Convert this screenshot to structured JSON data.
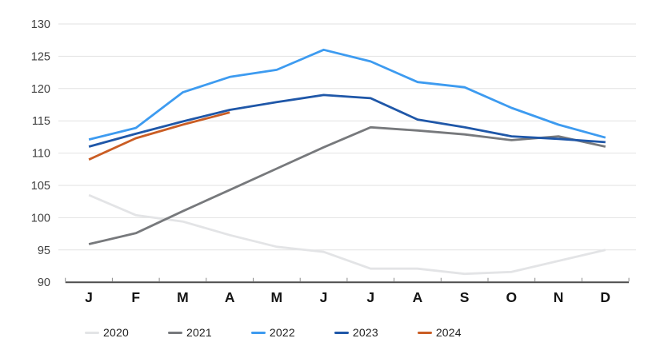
{
  "chart_data": {
    "type": "line",
    "title": "",
    "categories": [
      "J",
      "F",
      "M",
      "A",
      "M",
      "J",
      "J",
      "A",
      "S",
      "O",
      "N",
      "D"
    ],
    "ylim": [
      90,
      130
    ],
    "yticks": [
      130,
      125,
      120,
      115,
      110,
      105,
      100,
      95,
      90
    ],
    "grid": "horizontal",
    "legend_position": "bottom",
    "series": [
      {
        "name": "2020",
        "color": "#e3e4e6",
        "values": [
          103.5,
          100.4,
          99.4,
          97.3,
          95.5,
          94.7,
          92.1,
          92.1,
          91.3,
          91.6,
          93.3,
          95.0
        ]
      },
      {
        "name": "2021",
        "color": "#77797c",
        "values": [
          95.9,
          97.6,
          101.0,
          104.3,
          107.6,
          110.9,
          114.0,
          113.5,
          112.9,
          112.0,
          112.6,
          111.0
        ]
      },
      {
        "name": "2022",
        "color": "#3d9bf0",
        "values": [
          112.1,
          113.9,
          119.4,
          121.8,
          122.9,
          126.0,
          124.2,
          121.0,
          120.2,
          117.0,
          114.4,
          112.4
        ]
      },
      {
        "name": "2023",
        "color": "#1f57a8",
        "values": [
          111.0,
          113.0,
          114.9,
          116.7,
          117.9,
          119.0,
          118.5,
          115.2,
          114.0,
          112.6,
          112.2,
          111.7
        ]
      },
      {
        "name": "2024",
        "color": "#ca5d24",
        "values": [
          109.0,
          112.3,
          114.4,
          116.3
        ]
      }
    ],
    "style": {
      "grid_color": "#e2e2e2",
      "axis_color": "#4d4d4d",
      "tick_color": "#8a8a8a",
      "y_label_color": "#3f3f3f",
      "x_label_color": "#141414",
      "legend_text_color": "#1f1f1f"
    }
  }
}
